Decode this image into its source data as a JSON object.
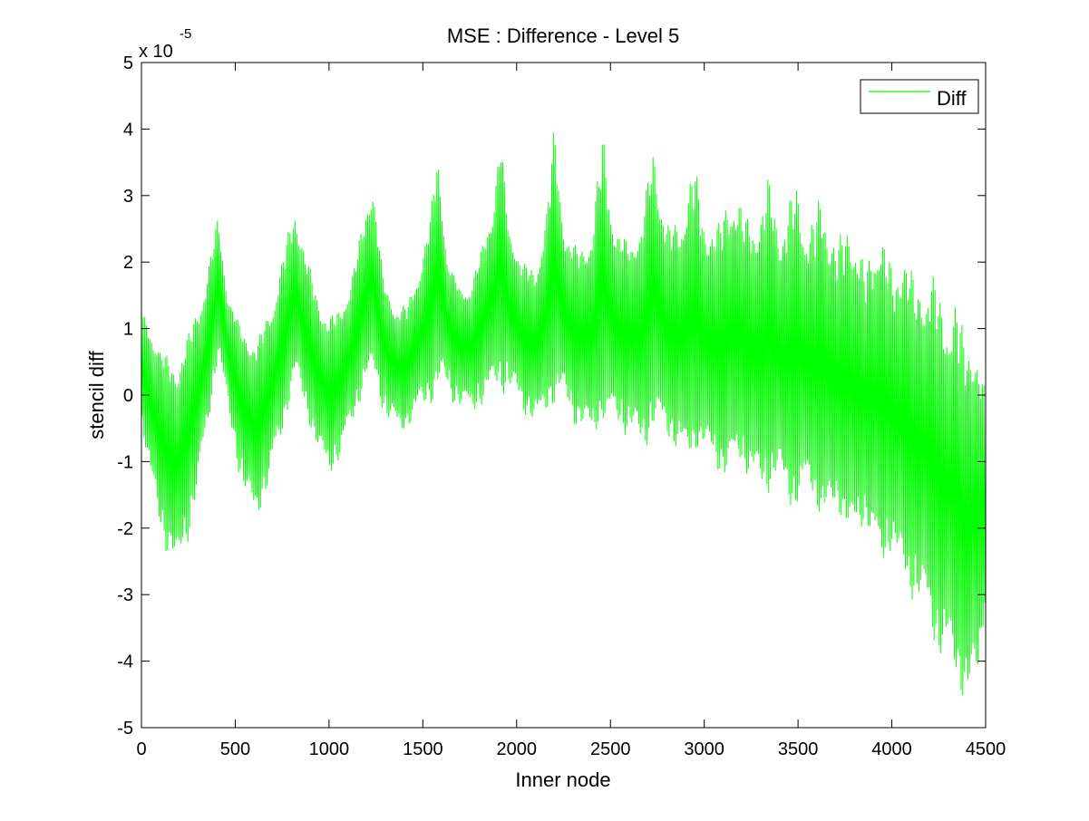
{
  "chart_data": {
    "type": "line",
    "title": "MSE : Difference - Level 5",
    "xlabel": "Inner node",
    "ylabel": "stencil diff",
    "y_multiplier_base": "x 10",
    "y_multiplier_exponent": "-5",
    "xlim": [
      0,
      4500
    ],
    "ylim": [
      -5,
      5
    ],
    "x_ticks": [
      0,
      500,
      1000,
      1500,
      2000,
      2500,
      3000,
      3500,
      4000,
      4500
    ],
    "x_tick_labels": [
      "0",
      "500",
      "1000",
      "1500",
      "2000",
      "2500",
      "3000",
      "3500",
      "4000",
      "4500"
    ],
    "y_ticks": [
      -5,
      -4,
      -3,
      -2,
      -1,
      0,
      1,
      2,
      3,
      4,
      5
    ],
    "y_tick_labels": [
      "-5",
      "-4",
      "-3",
      "-2",
      "-1",
      "0",
      "1",
      "2",
      "3",
      "4",
      "5"
    ],
    "grid": false,
    "legend": {
      "position": "top-right",
      "entries": [
        "Diff"
      ]
    },
    "series": [
      {
        "name": "Diff",
        "color": "#00ff00",
        "envelope_upper": [
          [
            0,
            1.3
          ],
          [
            100,
            0.7
          ],
          [
            180,
            0.45
          ],
          [
            260,
            1.0
          ],
          [
            340,
            1.7
          ],
          [
            410,
            2.75
          ],
          [
            460,
            1.5
          ],
          [
            540,
            0.95
          ],
          [
            620,
            0.85
          ],
          [
            700,
            1.4
          ],
          [
            760,
            2.2
          ],
          [
            820,
            2.9
          ],
          [
            880,
            2.1
          ],
          [
            940,
            1.5
          ],
          [
            1000,
            1.2
          ],
          [
            1060,
            1.3
          ],
          [
            1120,
            1.8
          ],
          [
            1180,
            2.6
          ],
          [
            1230,
            3.4
          ],
          [
            1290,
            1.7
          ],
          [
            1350,
            1.3
          ],
          [
            1420,
            1.4
          ],
          [
            1480,
            1.9
          ],
          [
            1540,
            2.7
          ],
          [
            1580,
            3.8
          ],
          [
            1630,
            2.0
          ],
          [
            1700,
            1.6
          ],
          [
            1760,
            1.7
          ],
          [
            1820,
            2.3
          ],
          [
            1880,
            3.0
          ],
          [
            1910,
            4.0
          ],
          [
            1960,
            2.5
          ],
          [
            2030,
            2.0
          ],
          [
            2100,
            1.9
          ],
          [
            2160,
            2.8
          ],
          [
            2200,
            4.1
          ],
          [
            2260,
            2.4
          ],
          [
            2330,
            2.2
          ],
          [
            2400,
            2.5
          ],
          [
            2460,
            4.05
          ],
          [
            2530,
            2.5
          ],
          [
            2600,
            2.3
          ],
          [
            2660,
            2.5
          ],
          [
            2730,
            3.85
          ],
          [
            2800,
            2.6
          ],
          [
            2870,
            2.6
          ],
          [
            2940,
            3.6
          ],
          [
            3000,
            2.7
          ],
          [
            3080,
            2.6
          ],
          [
            3150,
            3.3
          ],
          [
            3220,
            2.7
          ],
          [
            3300,
            2.8
          ],
          [
            3340,
            3.3
          ],
          [
            3410,
            2.6
          ],
          [
            3490,
            3.25
          ],
          [
            3560,
            2.6
          ],
          [
            3630,
            3.1
          ],
          [
            3710,
            2.3
          ],
          [
            3780,
            2.8
          ],
          [
            3860,
            1.9
          ],
          [
            3930,
            2.75
          ],
          [
            4010,
            1.8
          ],
          [
            4060,
            2.45
          ],
          [
            4130,
            1.6
          ],
          [
            4210,
            2.0
          ],
          [
            4280,
            1.2
          ],
          [
            4340,
            1.6
          ],
          [
            4390,
            0.8
          ],
          [
            4440,
            1.0
          ],
          [
            4500,
            0.0
          ]
        ],
        "envelope_lower": [
          [
            0,
            -0.4
          ],
          [
            60,
            -1.6
          ],
          [
            120,
            -2.3
          ],
          [
            190,
            -2.7
          ],
          [
            250,
            -2.2
          ],
          [
            330,
            -1.0
          ],
          [
            410,
            0.6
          ],
          [
            460,
            -0.3
          ],
          [
            540,
            -1.5
          ],
          [
            610,
            -1.9
          ],
          [
            680,
            -1.4
          ],
          [
            760,
            -0.5
          ],
          [
            820,
            0.3
          ],
          [
            880,
            -0.3
          ],
          [
            940,
            -0.9
          ],
          [
            1000,
            -1.2
          ],
          [
            1060,
            -1.0
          ],
          [
            1120,
            -0.5
          ],
          [
            1200,
            0.2
          ],
          [
            1240,
            0.3
          ],
          [
            1300,
            -0.4
          ],
          [
            1360,
            -0.6
          ],
          [
            1420,
            -0.5
          ],
          [
            1480,
            -0.3
          ],
          [
            1560,
            -0.1
          ],
          [
            1600,
            0.1
          ],
          [
            1680,
            -0.2
          ],
          [
            1760,
            -0.3
          ],
          [
            1840,
            -0.1
          ],
          [
            1900,
            0.05
          ],
          [
            1960,
            0.0
          ],
          [
            2040,
            -0.3
          ],
          [
            2120,
            -0.5
          ],
          [
            2180,
            -0.2
          ],
          [
            2240,
            -0.1
          ],
          [
            2320,
            -0.5
          ],
          [
            2400,
            -0.7
          ],
          [
            2450,
            -0.4
          ],
          [
            2520,
            -0.4
          ],
          [
            2610,
            -0.7
          ],
          [
            2670,
            -0.9
          ],
          [
            2740,
            -0.5
          ],
          [
            2820,
            -0.7
          ],
          [
            2900,
            -1.1
          ],
          [
            2960,
            -0.8
          ],
          [
            3040,
            -1.0
          ],
          [
            3110,
            -1.3
          ],
          [
            3190,
            -1.0
          ],
          [
            3260,
            -1.4
          ],
          [
            3330,
            -1.5
          ],
          [
            3400,
            -1.3
          ],
          [
            3480,
            -1.8
          ],
          [
            3560,
            -1.4
          ],
          [
            3640,
            -2.0
          ],
          [
            3710,
            -1.7
          ],
          [
            3790,
            -2.3
          ],
          [
            3860,
            -1.9
          ],
          [
            3940,
            -2.7
          ],
          [
            4000,
            -2.3
          ],
          [
            4080,
            -3.0
          ],
          [
            4160,
            -3.2
          ],
          [
            4240,
            -3.9
          ],
          [
            4320,
            -4.2
          ],
          [
            4400,
            -4.7
          ],
          [
            4460,
            -4.5
          ],
          [
            4500,
            -3.0
          ]
        ],
        "mean_trend": [
          [
            0,
            0.5
          ],
          [
            200,
            -0.9
          ],
          [
            410,
            1.5
          ],
          [
            600,
            -0.4
          ],
          [
            820,
            1.4
          ],
          [
            1000,
            0.0
          ],
          [
            1230,
            1.6
          ],
          [
            1400,
            0.4
          ],
          [
            1580,
            1.8
          ],
          [
            1750,
            0.8
          ],
          [
            1910,
            1.9
          ],
          [
            2100,
            0.8
          ],
          [
            2200,
            1.7
          ],
          [
            2400,
            0.9
          ],
          [
            2700,
            1.3
          ],
          [
            3000,
            0.7
          ],
          [
            3300,
            0.6
          ],
          [
            3600,
            0.2
          ],
          [
            3900,
            -0.2
          ],
          [
            4200,
            -0.9
          ],
          [
            4400,
            -1.8
          ],
          [
            4500,
            -1.5
          ]
        ]
      }
    ]
  }
}
